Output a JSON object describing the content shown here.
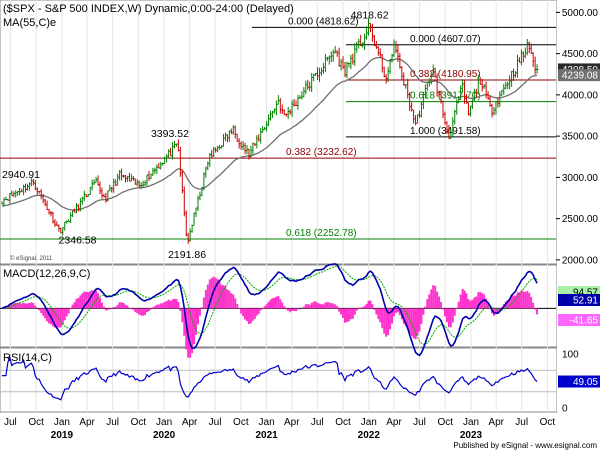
{
  "header": {
    "title": "($SPX - S&P 500 INDEX,W) Dynamic,0:00-24:00 (Delayed)",
    "ma_label": "MA(55,C)e"
  },
  "chart_data": [
    {
      "type": "candlestick",
      "ylim": [
        1950,
        5150
      ],
      "yticks": [
        2000,
        2500,
        3000,
        3500,
        4000,
        4500,
        5000
      ],
      "ytick_labels": [
        "2000.00",
        "2500.00",
        "3000.00",
        "3500.00",
        "4000.00",
        "4500.00",
        "5000.00"
      ],
      "price_tags": [
        {
          "label": "4308.50",
          "value": 4308.5
        },
        {
          "label": "4239.08",
          "value": 4239.08
        }
      ],
      "annotations": [
        {
          "label": "2940.91",
          "value": 2940.91
        },
        {
          "label": "2346.58",
          "value": 2346.58
        },
        {
          "label": "3393.52",
          "value": 3393.52
        },
        {
          "label": "2191.86",
          "value": 2191.86
        },
        {
          "label": "4818.62",
          "value": 4818.62
        }
      ],
      "fib_levels": [
        {
          "label": "0.000 (4818.62)",
          "value": 4818.62,
          "color": "#000000"
        },
        {
          "label": "0.382 (3232.62)",
          "value": 3232.62,
          "color": "#8b0000"
        },
        {
          "label": "0.618 (2252.78)",
          "value": 2252.78,
          "color": "#008000"
        },
        {
          "label": "0.000 (4607.07)",
          "value": 4607.07,
          "color": "#000000"
        },
        {
          "label": "0.382 (4180.95)",
          "value": 4180.95,
          "color": "#8b0000"
        },
        {
          "label": "0.618 (3917.70)",
          "value": 3917.7,
          "color": "#008000"
        },
        {
          "label": "1.000 (3491.58)",
          "value": 3491.58,
          "color": "#000000"
        }
      ],
      "anchors": [
        [
          "2018-06-01",
          2720
        ],
        [
          "2018-09-21",
          2940.91
        ],
        [
          "2018-12-24",
          2346.58
        ],
        [
          "2019-05-01",
          2940
        ],
        [
          "2019-06-03",
          2740
        ],
        [
          "2019-07-26",
          3025
        ],
        [
          "2019-10-04",
          2900
        ],
        [
          "2020-02-19",
          3393.52
        ],
        [
          "2020-03-23",
          2191.86
        ],
        [
          "2020-06-08",
          3230
        ],
        [
          "2020-09-02",
          3580
        ],
        [
          "2020-10-30",
          3270
        ],
        [
          "2021-02-12",
          3930
        ],
        [
          "2021-03-05",
          3730
        ],
        [
          "2021-09-02",
          4540
        ],
        [
          "2021-10-04",
          4280
        ],
        [
          "2022-01-04",
          4818.62
        ],
        [
          "2022-03-08",
          4160
        ],
        [
          "2022-03-29",
          4630
        ],
        [
          "2022-06-17",
          3640
        ],
        [
          "2022-08-16",
          4325
        ],
        [
          "2022-10-13",
          3491.58
        ],
        [
          "2022-12-01",
          4100
        ],
        [
          "2022-12-22",
          3760
        ],
        [
          "2023-02-02",
          4200
        ],
        [
          "2023-03-13",
          3810
        ],
        [
          "2023-07-27",
          4607.07
        ],
        [
          "2023-08-18",
          4335
        ],
        [
          "2023-08-25",
          4308.5
        ]
      ],
      "ma_period": 55,
      "ma_seed": 2650,
      "last_ma": 4239.08
    },
    {
      "type": "line",
      "title": "MACD(12,26,9,C)",
      "ylim": [
        -160,
        180
      ],
      "value_tags": [
        {
          "label": "94.57",
          "value": 94.57
        },
        {
          "label": "52.91",
          "value": 52.91
        },
        {
          "label": "-41.65",
          "value": -41.65
        }
      ],
      "zero_line": true
    },
    {
      "type": "line",
      "title": "RSI(14,C)",
      "ylim": [
        0,
        100
      ],
      "yticks": [
        0,
        50,
        100
      ],
      "ytick_labels": [
        "0",
        "50",
        "100"
      ],
      "value_tags": [
        {
          "label": "49.05",
          "value": 49.05
        }
      ],
      "bands": [
        30,
        70
      ]
    }
  ],
  "x_axis": {
    "start": "2018-06-01",
    "end": "2023-10-28",
    "months": [
      {
        "label": "Jul",
        "date": "2018-07-01"
      },
      {
        "label": "Oct",
        "date": "2018-10-01"
      },
      {
        "label": "Jan",
        "date": "2019-01-01"
      },
      {
        "label": "Apr",
        "date": "2019-04-01"
      },
      {
        "label": "Jul",
        "date": "2019-07-01"
      },
      {
        "label": "Oct",
        "date": "2019-10-01"
      },
      {
        "label": "Jan",
        "date": "2020-01-01"
      },
      {
        "label": "Apr",
        "date": "2020-04-01"
      },
      {
        "label": "Jul",
        "date": "2020-07-01"
      },
      {
        "label": "Oct",
        "date": "2020-10-01"
      },
      {
        "label": "Jan",
        "date": "2021-01-01"
      },
      {
        "label": "Apr",
        "date": "2021-04-01"
      },
      {
        "label": "Jul",
        "date": "2021-07-01"
      },
      {
        "label": "Oct",
        "date": "2021-10-01"
      },
      {
        "label": "Jan",
        "date": "2022-01-01"
      },
      {
        "label": "Apr",
        "date": "2022-04-01"
      },
      {
        "label": "Jul",
        "date": "2022-07-01"
      },
      {
        "label": "Oct",
        "date": "2022-10-01"
      },
      {
        "label": "Jan",
        "date": "2023-01-01"
      },
      {
        "label": "Apr",
        "date": "2023-04-01"
      },
      {
        "label": "Jul",
        "date": "2023-07-01"
      },
      {
        "label": "Oct",
        "date": "2023-10-01"
      }
    ],
    "years": [
      {
        "label": "2019",
        "date": "2019-01-01"
      },
      {
        "label": "2020",
        "date": "2020-01-01"
      },
      {
        "label": "2021",
        "date": "2021-01-01"
      },
      {
        "label": "2022",
        "date": "2022-01-01"
      },
      {
        "label": "2023",
        "date": "2023-01-01"
      }
    ]
  },
  "watermark": "© eSignal, 2011",
  "footer": {
    "published": "Published by eSignal - www.esignal.com"
  },
  "colors": {
    "up": "#008000",
    "down": "#cc0000",
    "ma": "#707070",
    "macd": "#0000aa",
    "signal": "#00aa00",
    "hist": "#ff33cc",
    "rsi": "#0000cc",
    "tag_green": "#a8f0a8",
    "tag_pink": "#ff66ff",
    "tag_dark": "#2a2a2a"
  }
}
